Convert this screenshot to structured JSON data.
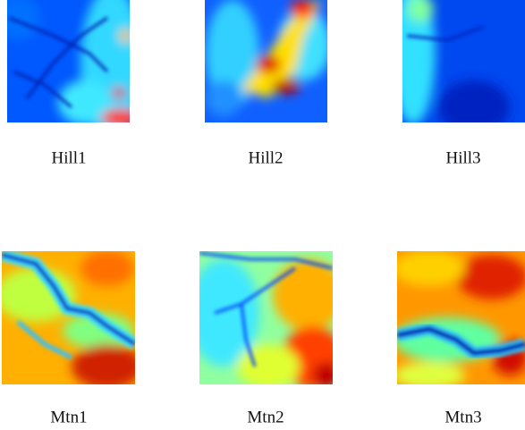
{
  "figures": [
    {
      "label": "Hill1"
    },
    {
      "label": "Hill2"
    },
    {
      "label": "Hill3"
    },
    {
      "label": "Mtn1"
    },
    {
      "label": "Mtn2"
    },
    {
      "label": "Mtn3"
    }
  ]
}
